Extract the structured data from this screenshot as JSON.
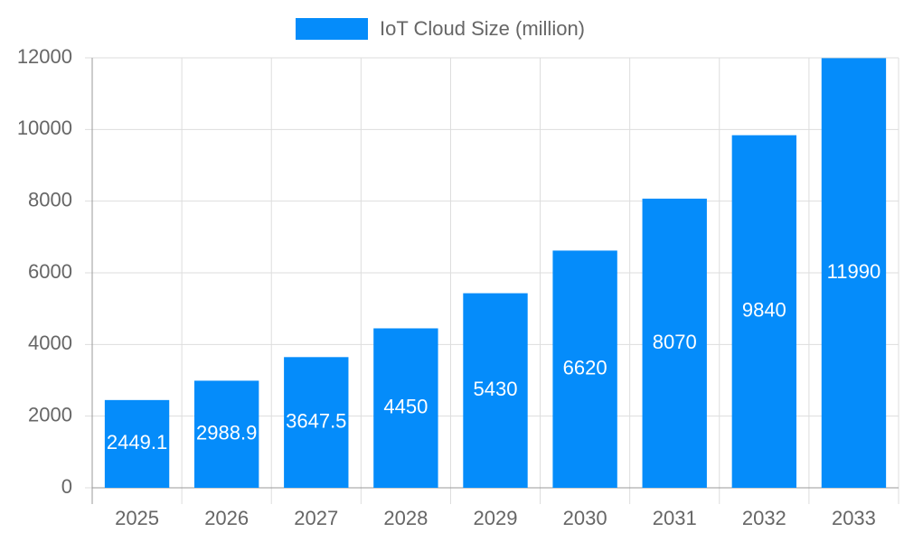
{
  "chart_data": {
    "type": "bar",
    "categories": [
      "2025",
      "2026",
      "2027",
      "2028",
      "2029",
      "2030",
      "2031",
      "2032",
      "2033"
    ],
    "series": [
      {
        "name": "IoT Cloud Size (million)",
        "color": "#058cfa",
        "values": [
          2449.1,
          2988.9,
          3647.5,
          4450,
          5430,
          6620,
          8070,
          9840,
          11990
        ]
      }
    ],
    "ylim": [
      0,
      12000
    ],
    "yticks": [
      0,
      2000,
      4000,
      6000,
      8000,
      10000,
      12000
    ],
    "grid": true,
    "legend": "top"
  }
}
